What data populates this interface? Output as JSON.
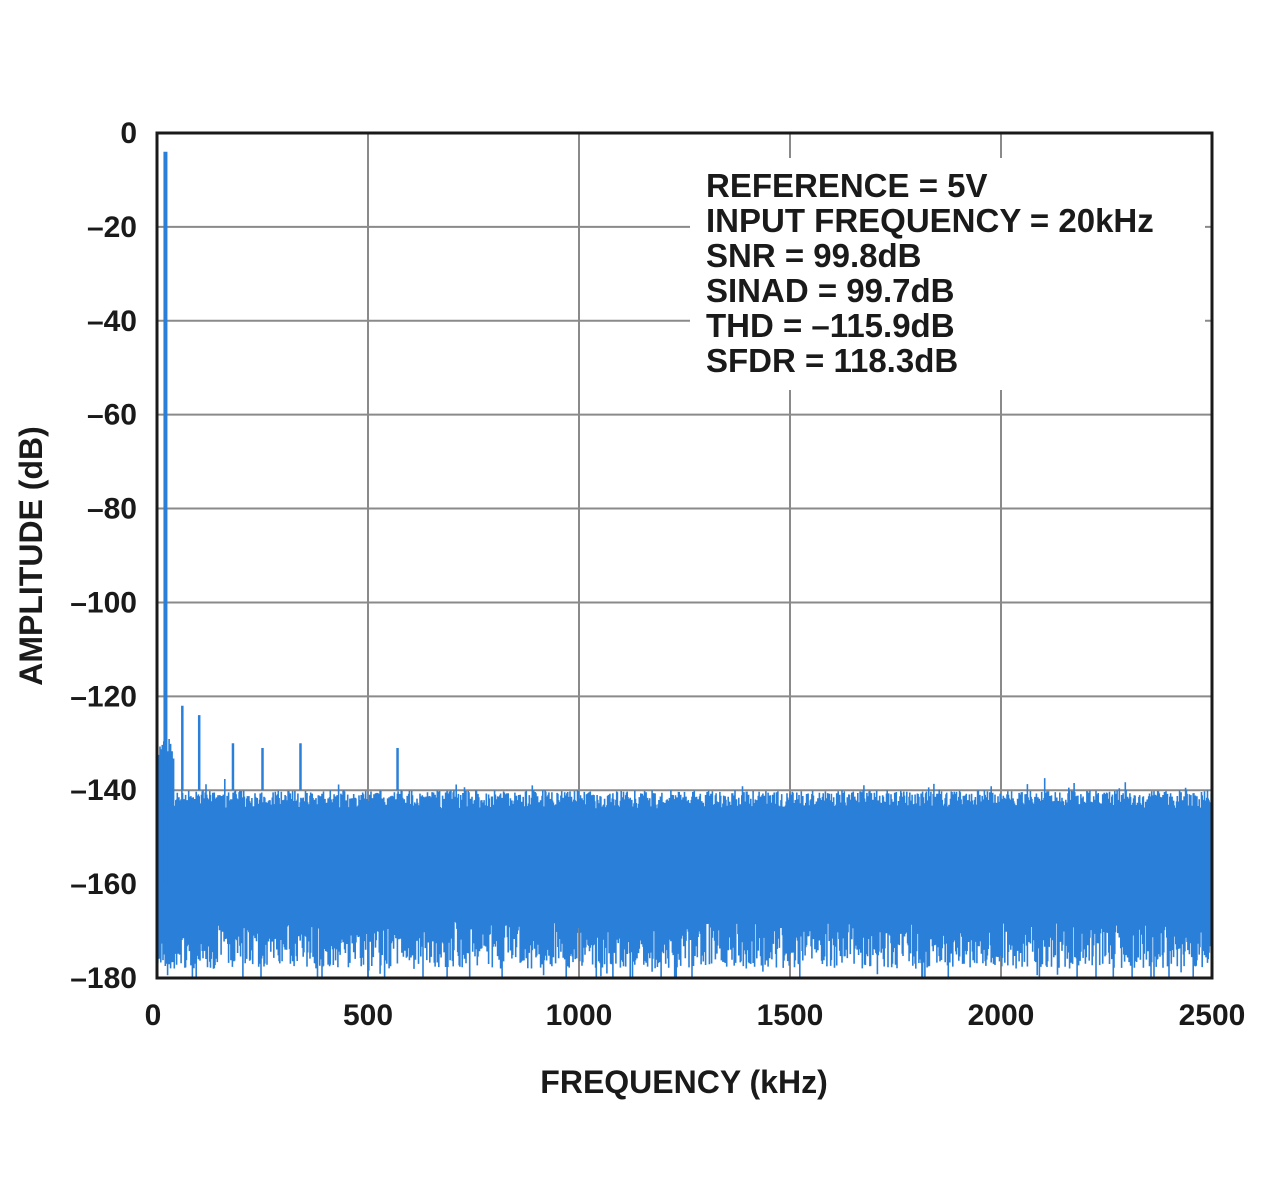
{
  "chart_data": {
    "type": "line",
    "xlabel": "FREQUENCY (kHz)",
    "ylabel": "AMPLITUDE (dB)",
    "xlim": [
      0,
      2500
    ],
    "ylim": [
      -180,
      0
    ],
    "x_ticks": [
      "0",
      "500",
      "1000",
      "1500",
      "2000",
      "2500"
    ],
    "y_ticks": [
      "0",
      "–20",
      "–40",
      "–60",
      "–80",
      "–100",
      "–120",
      "–140",
      "–160",
      "–180"
    ],
    "grid": true,
    "series": [
      {
        "color": "#2a7fd8",
        "fundamental": {
          "x": 20,
          "y": -4
        },
        "spurs": [
          {
            "x": 60,
            "y": -122
          },
          {
            "x": 100,
            "y": -124
          },
          {
            "x": 180,
            "y": -130
          },
          {
            "x": 250,
            "y": -131
          },
          {
            "x": 340,
            "y": -130
          },
          {
            "x": 570,
            "y": -131
          }
        ],
        "noise_floor_top": -140,
        "noise_floor_bottom": -172
      }
    ],
    "annotations": [
      "REFERENCE = 5V",
      "INPUT FREQUENCY = 20kHz",
      "SNR = 99.8dB",
      "SINAD = 99.7dB",
      "THD = –115.9dB",
      "SFDR = 118.3dB"
    ]
  }
}
